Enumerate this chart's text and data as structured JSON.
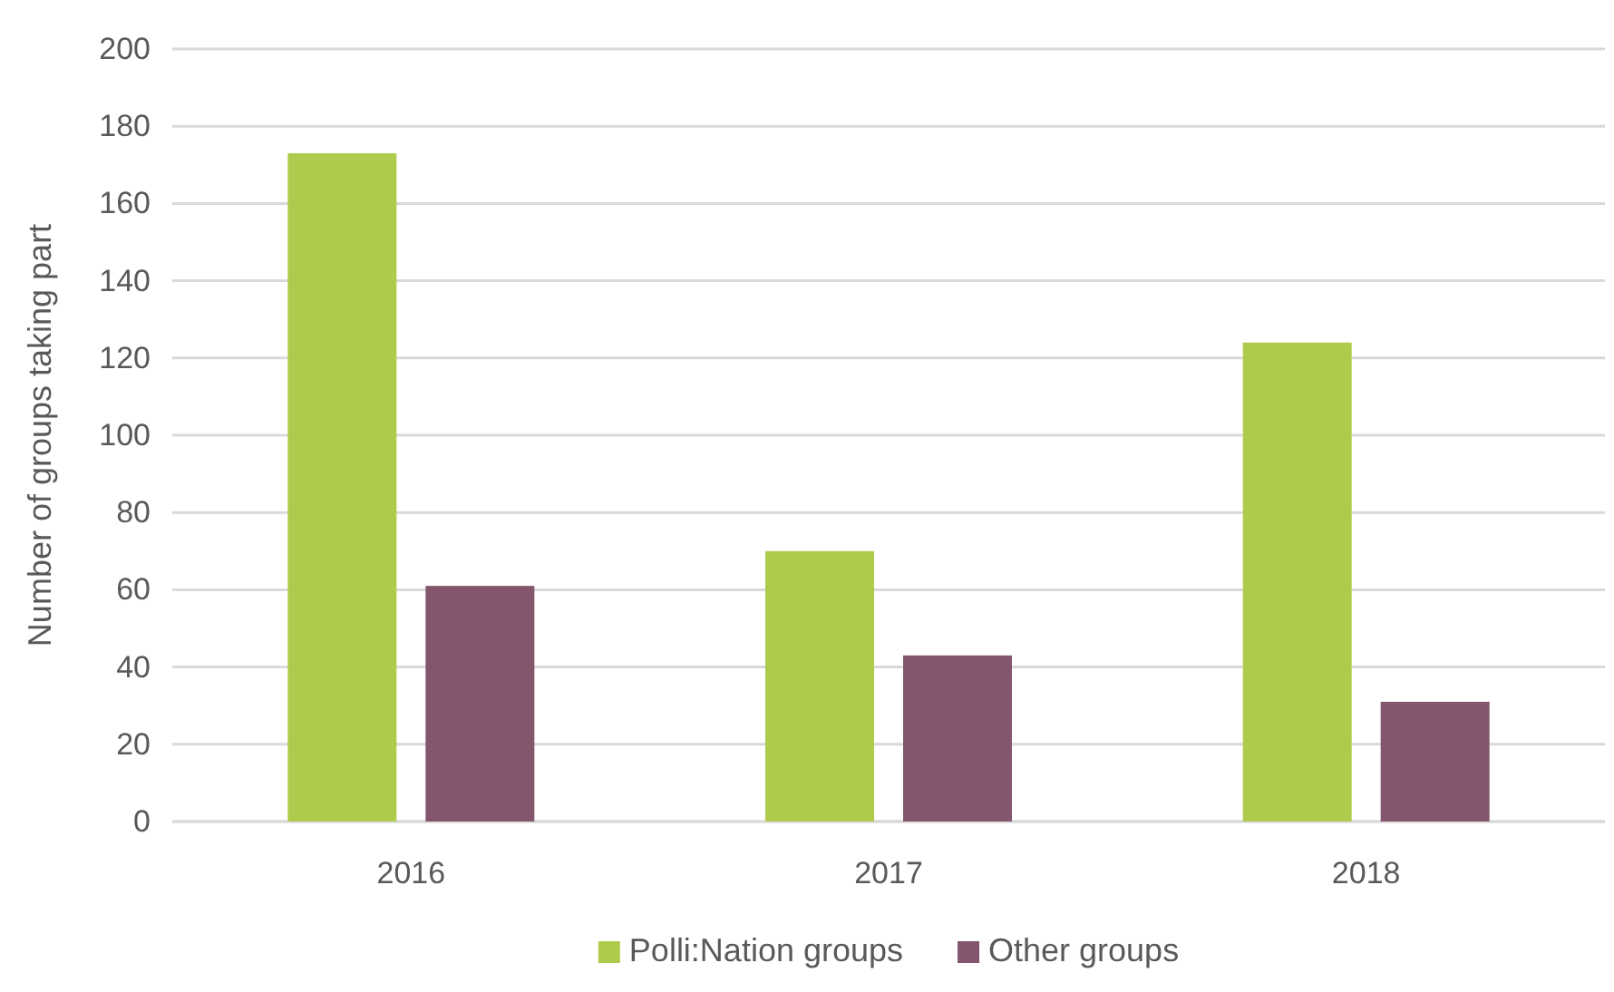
{
  "chart_data": {
    "type": "bar",
    "ylabel": "Number of groups taking part",
    "categories": [
      "2016",
      "2017",
      "2018"
    ],
    "series": [
      {
        "name": "Polli:Nation groups",
        "color": "#afcb4b",
        "values": [
          173,
          70,
          124
        ]
      },
      {
        "name": "Other groups",
        "color": "#84566e",
        "values": [
          61,
          43,
          31
        ]
      }
    ],
    "ylim": [
      0,
      200
    ],
    "yticks": [
      0,
      20,
      40,
      60,
      80,
      100,
      120,
      140,
      160,
      180,
      200
    ],
    "grid": "y",
    "legend": "bottom"
  }
}
